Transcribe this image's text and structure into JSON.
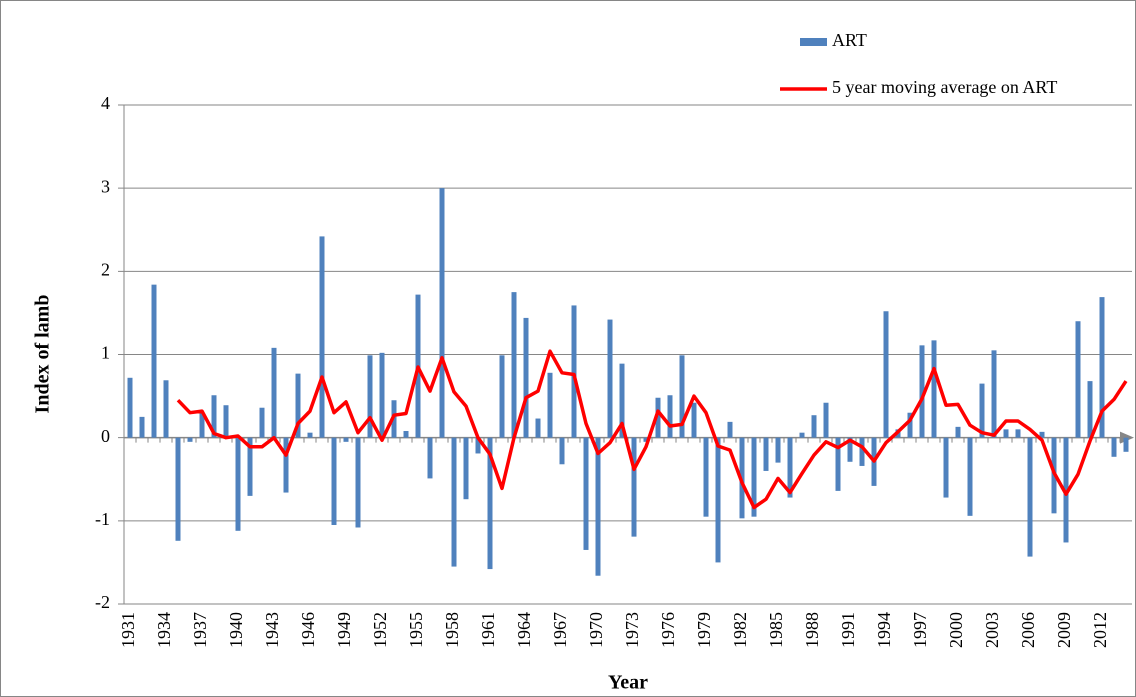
{
  "chart_data": {
    "type": "bar-line",
    "x_label": "Year",
    "y_label": "Index of lamb",
    "categories": [
      "1931",
      null,
      null,
      "1934",
      null,
      null,
      "1937",
      null,
      null,
      "1940",
      null,
      null,
      "1943",
      null,
      null,
      "1946",
      null,
      null,
      "1949",
      null,
      null,
      "1952",
      null,
      null,
      "1955",
      null,
      null,
      "1958",
      null,
      null,
      "1961",
      null,
      null,
      "1964",
      null,
      null,
      "1967",
      null,
      null,
      "1970",
      null,
      null,
      "1973",
      null,
      null,
      "1976",
      null,
      null,
      "1979",
      null,
      null,
      "1982",
      null,
      null,
      "1985",
      null,
      null,
      "1988",
      null,
      null,
      "1991",
      null,
      null,
      "1994",
      null,
      null,
      "1997",
      null,
      null,
      "2000",
      null,
      null,
      "2003",
      null,
      null,
      "2006",
      null,
      null,
      "2009",
      null,
      null,
      "2012",
      null,
      null
    ],
    "series": [
      {
        "name": "ART",
        "type": "bar",
        "color": "#4f81bd",
        "values": [
          0.72,
          0.25,
          1.84,
          0.69,
          -1.24,
          -0.05,
          0.3,
          0.51,
          0.39,
          -1.12,
          -0.7,
          0.36,
          1.08,
          -0.66,
          0.77,
          0.06,
          2.42,
          -1.05,
          -0.05,
          -1.08,
          0.99,
          1.02,
          0.45,
          0.08,
          1.72,
          -0.49,
          3.0,
          -1.55,
          -0.74,
          -0.19,
          -1.58,
          0.99,
          1.75,
          1.44,
          0.23,
          0.78,
          -0.32,
          1.59,
          -1.35,
          -1.66,
          1.42,
          0.89,
          -1.19,
          -0.05,
          0.48,
          0.51,
          0.99,
          0.42,
          -0.95,
          -1.5,
          0.19,
          -0.97,
          -0.95,
          -0.4,
          -0.3,
          -0.72,
          0.06,
          0.27,
          0.42,
          -0.64,
          -0.29,
          -0.34,
          -0.58,
          1.52,
          0.1,
          0.3,
          1.11,
          1.17,
          -0.72,
          0.13,
          -0.94,
          0.65,
          1.05,
          0.1,
          0.1,
          -1.43,
          0.07,
          -0.91,
          -1.26,
          1.4,
          0.68,
          1.69,
          -0.23,
          -0.17
        ]
      },
      {
        "name": "5 year moving average on ART",
        "type": "line",
        "color": "#ff0000",
        "values": [
          null,
          null,
          null,
          null,
          0.45,
          0.3,
          0.32,
          0.05,
          0.0,
          0.02,
          -0.11,
          -0.11,
          0.0,
          -0.21,
          0.17,
          0.32,
          0.73,
          0.3,
          0.43,
          0.06,
          0.24,
          -0.03,
          0.27,
          0.29,
          0.85,
          0.56,
          0.96,
          0.55,
          0.38,
          0.0,
          -0.2,
          -0.61,
          0.0,
          0.48,
          0.56,
          1.04,
          0.78,
          0.76,
          0.17,
          -0.19,
          -0.06,
          0.17,
          -0.38,
          -0.11,
          0.32,
          0.14,
          0.16,
          0.5,
          0.3,
          -0.1,
          -0.15,
          -0.54,
          -0.84,
          -0.74,
          -0.49,
          -0.66,
          -0.43,
          -0.21,
          -0.05,
          -0.12,
          -0.03,
          -0.11,
          -0.28,
          -0.06,
          0.07,
          0.21,
          0.47,
          0.83,
          0.39,
          0.4,
          0.15,
          0.06,
          0.03,
          0.2,
          0.2,
          0.1,
          -0.03,
          -0.42,
          -0.68,
          -0.44,
          -0.04,
          0.32,
          0.46,
          0.68
        ]
      }
    ],
    "ylim": [
      -2,
      4
    ],
    "yticks": [
      -2,
      -1,
      0,
      1,
      2,
      3,
      4
    ],
    "grid": true,
    "legend": "top-right"
  }
}
